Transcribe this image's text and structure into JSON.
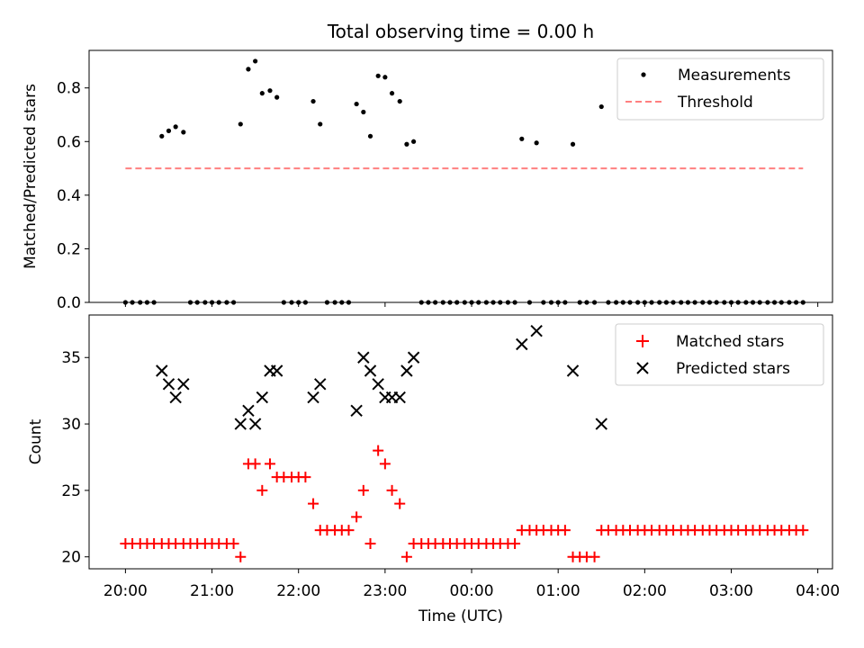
{
  "chart_data": [
    {
      "type": "scatter",
      "title": "Total observing time = 0.00 h",
      "xlabel": "",
      "ylabel": "Matched/Predicted stars",
      "ylim": [
        0,
        0.94
      ],
      "yticks": [
        0.0,
        0.2,
        0.4,
        0.6,
        0.8
      ],
      "ytick_labels": [
        "0.0",
        "0.2",
        "0.4",
        "0.6",
        "0.8"
      ],
      "legend": "top-right",
      "series": [
        {
          "name": "Measurements",
          "marker": "dot",
          "color": "#000000",
          "points": [
            [
              0.0,
              0
            ],
            [
              0.08,
              0
            ],
            [
              0.17,
              0
            ],
            [
              0.25,
              0
            ],
            [
              0.33,
              0
            ],
            [
              0.42,
              0.62
            ],
            [
              0.5,
              0.64
            ],
            [
              0.58,
              0.655
            ],
            [
              0.67,
              0.635
            ],
            [
              0.75,
              0
            ],
            [
              0.83,
              0
            ],
            [
              0.92,
              0
            ],
            [
              1.0,
              0
            ],
            [
              1.08,
              0
            ],
            [
              1.17,
              0
            ],
            [
              1.25,
              0
            ],
            [
              1.33,
              0.665
            ],
            [
              1.42,
              0.87
            ],
            [
              1.5,
              0.9
            ],
            [
              1.58,
              0.78
            ],
            [
              1.67,
              0.79
            ],
            [
              1.75,
              0.765
            ],
            [
              1.83,
              0
            ],
            [
              1.92,
              0
            ],
            [
              2.0,
              0
            ],
            [
              2.08,
              0
            ],
            [
              2.17,
              0.75
            ],
            [
              2.25,
              0.665
            ],
            [
              2.33,
              0
            ],
            [
              2.42,
              0
            ],
            [
              2.5,
              0
            ],
            [
              2.58,
              0
            ],
            [
              2.67,
              0.74
            ],
            [
              2.75,
              0.71
            ],
            [
              2.83,
              0.62
            ],
            [
              2.92,
              0.845
            ],
            [
              3.0,
              0.84
            ],
            [
              3.08,
              0.78
            ],
            [
              3.17,
              0.75
            ],
            [
              3.25,
              0.59
            ],
            [
              3.33,
              0.6
            ],
            [
              3.42,
              0
            ],
            [
              3.5,
              0
            ],
            [
              3.58,
              0
            ],
            [
              3.67,
              0
            ],
            [
              3.75,
              0
            ],
            [
              3.83,
              0
            ],
            [
              3.92,
              0
            ],
            [
              4.0,
              0
            ],
            [
              4.08,
              0
            ],
            [
              4.17,
              0
            ],
            [
              4.25,
              0
            ],
            [
              4.33,
              0
            ],
            [
              4.42,
              0
            ],
            [
              4.5,
              0
            ],
            [
              4.58,
              0.61
            ],
            [
              4.67,
              0
            ],
            [
              4.75,
              0.595
            ],
            [
              4.83,
              0
            ],
            [
              4.92,
              0
            ],
            [
              5.0,
              0
            ],
            [
              5.08,
              0
            ],
            [
              5.17,
              0.59
            ],
            [
              5.25,
              0
            ],
            [
              5.33,
              0
            ],
            [
              5.42,
              0
            ],
            [
              5.5,
              0.73
            ],
            [
              5.58,
              0
            ],
            [
              5.67,
              0
            ],
            [
              5.75,
              0
            ],
            [
              5.83,
              0
            ],
            [
              5.92,
              0
            ],
            [
              6.0,
              0
            ],
            [
              6.08,
              0
            ],
            [
              6.17,
              0
            ],
            [
              6.25,
              0
            ],
            [
              6.33,
              0
            ],
            [
              6.42,
              0
            ],
            [
              6.5,
              0
            ],
            [
              6.58,
              0
            ],
            [
              6.67,
              0
            ],
            [
              6.75,
              0
            ],
            [
              6.83,
              0
            ],
            [
              6.92,
              0
            ],
            [
              7.0,
              0
            ],
            [
              7.08,
              0
            ],
            [
              7.17,
              0
            ],
            [
              7.25,
              0
            ],
            [
              7.33,
              0
            ],
            [
              7.42,
              0
            ],
            [
              7.5,
              0
            ],
            [
              7.58,
              0
            ],
            [
              7.67,
              0
            ],
            [
              7.75,
              0
            ],
            [
              7.83,
              0
            ]
          ]
        },
        {
          "name": "Threshold",
          "style": "dashed",
          "color": "#ff8080",
          "points": [
            [
              0.0,
              0.5
            ],
            [
              7.83,
              0.5
            ]
          ]
        }
      ]
    },
    {
      "type": "scatter",
      "title": "",
      "xlabel": "Time (UTC)",
      "ylabel": "Count",
      "xlim": [
        -0.42,
        8.17
      ],
      "ylim": [
        19.1,
        38.2
      ],
      "xticks": [
        0,
        1,
        2,
        3,
        4,
        5,
        6,
        7,
        8
      ],
      "xtick_labels": [
        "20:00",
        "21:00",
        "22:00",
        "23:00",
        "00:00",
        "01:00",
        "02:00",
        "03:00",
        "04:00"
      ],
      "yticks": [
        20,
        25,
        30,
        35
      ],
      "ytick_labels": [
        "20",
        "25",
        "30",
        "35"
      ],
      "legend": "top-right",
      "series": [
        {
          "name": "Matched stars",
          "marker": "plus",
          "color": "#ff0000",
          "points": [
            [
              0.0,
              21
            ],
            [
              0.08,
              21
            ],
            [
              0.17,
              21
            ],
            [
              0.25,
              21
            ],
            [
              0.33,
              21
            ],
            [
              0.42,
              21
            ],
            [
              0.5,
              21
            ],
            [
              0.58,
              21
            ],
            [
              0.67,
              21
            ],
            [
              0.75,
              21
            ],
            [
              0.83,
              21
            ],
            [
              0.92,
              21
            ],
            [
              1.0,
              21
            ],
            [
              1.08,
              21
            ],
            [
              1.17,
              21
            ],
            [
              1.25,
              21
            ],
            [
              1.33,
              20
            ],
            [
              1.42,
              27
            ],
            [
              1.5,
              27
            ],
            [
              1.58,
              25
            ],
            [
              1.67,
              27
            ],
            [
              1.75,
              26
            ],
            [
              1.83,
              26
            ],
            [
              1.92,
              26
            ],
            [
              2.0,
              26
            ],
            [
              2.08,
              26
            ],
            [
              2.17,
              24
            ],
            [
              2.25,
              22
            ],
            [
              2.33,
              22
            ],
            [
              2.42,
              22
            ],
            [
              2.5,
              22
            ],
            [
              2.58,
              22
            ],
            [
              2.67,
              23
            ],
            [
              2.75,
              25
            ],
            [
              2.83,
              21
            ],
            [
              2.92,
              28
            ],
            [
              3.0,
              27
            ],
            [
              3.08,
              25
            ],
            [
              3.17,
              24
            ],
            [
              3.25,
              20
            ],
            [
              3.33,
              21
            ],
            [
              3.42,
              21
            ],
            [
              3.5,
              21
            ],
            [
              3.58,
              21
            ],
            [
              3.67,
              21
            ],
            [
              3.75,
              21
            ],
            [
              3.83,
              21
            ],
            [
              3.92,
              21
            ],
            [
              4.0,
              21
            ],
            [
              4.08,
              21
            ],
            [
              4.17,
              21
            ],
            [
              4.25,
              21
            ],
            [
              4.33,
              21
            ],
            [
              4.42,
              21
            ],
            [
              4.5,
              21
            ],
            [
              4.58,
              22
            ],
            [
              4.67,
              22
            ],
            [
              4.75,
              22
            ],
            [
              4.83,
              22
            ],
            [
              4.92,
              22
            ],
            [
              5.0,
              22
            ],
            [
              5.08,
              22
            ],
            [
              5.17,
              20
            ],
            [
              5.25,
              20
            ],
            [
              5.33,
              20
            ],
            [
              5.42,
              20
            ],
            [
              5.5,
              22
            ],
            [
              5.58,
              22
            ],
            [
              5.67,
              22
            ],
            [
              5.75,
              22
            ],
            [
              5.83,
              22
            ],
            [
              5.92,
              22
            ],
            [
              6.0,
              22
            ],
            [
              6.08,
              22
            ],
            [
              6.17,
              22
            ],
            [
              6.25,
              22
            ],
            [
              6.33,
              22
            ],
            [
              6.42,
              22
            ],
            [
              6.5,
              22
            ],
            [
              6.58,
              22
            ],
            [
              6.67,
              22
            ],
            [
              6.75,
              22
            ],
            [
              6.83,
              22
            ],
            [
              6.92,
              22
            ],
            [
              7.0,
              22
            ],
            [
              7.08,
              22
            ],
            [
              7.17,
              22
            ],
            [
              7.25,
              22
            ],
            [
              7.33,
              22
            ],
            [
              7.42,
              22
            ],
            [
              7.5,
              22
            ],
            [
              7.58,
              22
            ],
            [
              7.67,
              22
            ],
            [
              7.75,
              22
            ],
            [
              7.83,
              22
            ]
          ]
        },
        {
          "name": "Predicted stars",
          "marker": "x",
          "color": "#000000",
          "points": [
            [
              0.42,
              34
            ],
            [
              0.5,
              33
            ],
            [
              0.58,
              32
            ],
            [
              0.67,
              33
            ],
            [
              1.33,
              30
            ],
            [
              1.42,
              31
            ],
            [
              1.5,
              30
            ],
            [
              1.58,
              32
            ],
            [
              1.67,
              34
            ],
            [
              1.75,
              34
            ],
            [
              2.17,
              32
            ],
            [
              2.25,
              33
            ],
            [
              2.67,
              31
            ],
            [
              2.75,
              35
            ],
            [
              2.83,
              34
            ],
            [
              2.92,
              33
            ],
            [
              3.0,
              32
            ],
            [
              3.08,
              32
            ],
            [
              3.17,
              32
            ],
            [
              3.25,
              34
            ],
            [
              3.33,
              35
            ],
            [
              4.58,
              36
            ],
            [
              4.75,
              37
            ],
            [
              5.17,
              34
            ],
            [
              5.5,
              30
            ]
          ]
        }
      ]
    }
  ]
}
